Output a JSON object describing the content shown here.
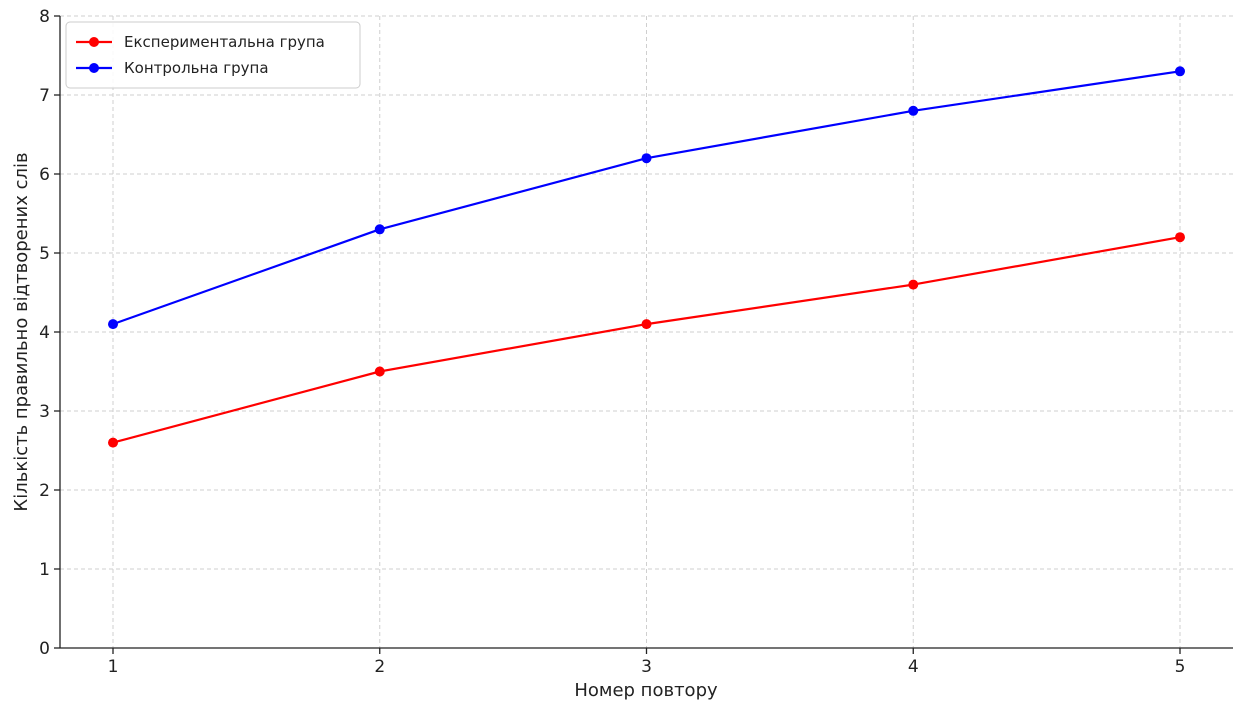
{
  "chart_data": {
    "type": "line",
    "title": "",
    "xlabel": "Номер повтору",
    "ylabel": "Кількість правильно відтворених слів",
    "x": [
      1,
      2,
      3,
      4,
      5
    ],
    "xticks": [
      "1",
      "2",
      "3",
      "4",
      "5"
    ],
    "ylim": [
      0,
      8
    ],
    "yticks": [
      "0",
      "1",
      "2",
      "3",
      "4",
      "5",
      "6",
      "7",
      "8"
    ],
    "grid": true,
    "legend_position": "top-left",
    "series": [
      {
        "name": "Експериментальна група",
        "color": "#ff0000",
        "values": [
          2.6,
          3.5,
          4.1,
          4.6,
          5.2
        ]
      },
      {
        "name": "Контрольна група",
        "color": "#0000ff",
        "values": [
          4.1,
          5.3,
          6.2,
          6.8,
          7.3
        ]
      }
    ]
  }
}
